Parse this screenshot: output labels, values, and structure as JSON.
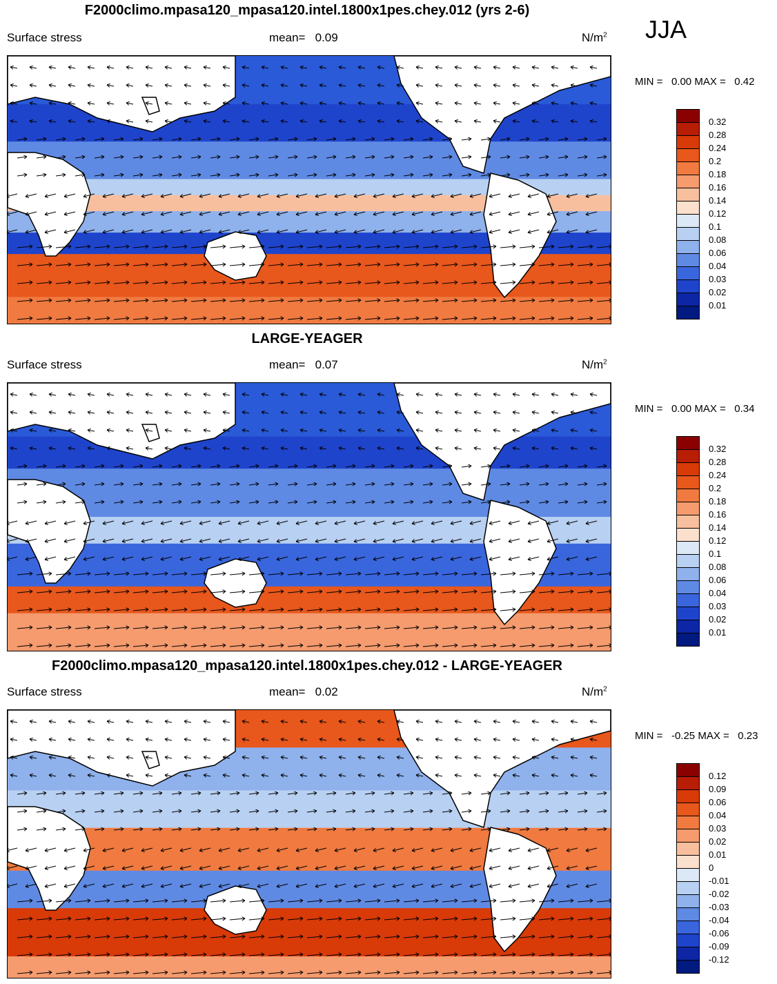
{
  "season": "JJA",
  "panels": [
    {
      "title": "F2000climo.mpasa120_mpasa120.intel.1800x1pes.chey.012 (yrs 2-6)",
      "variable": "Surface stress",
      "mean_label": "mean=",
      "mean_value": "0.09",
      "units_base": "N/m",
      "units_exp": "2",
      "min_label": "MIN =",
      "min_value": "0.00",
      "max_label": "MAX =",
      "max_value": "0.42",
      "colorbar": [
        "0.32",
        "0.28",
        "0.24",
        "0.2",
        "0.18",
        "0.16",
        "0.14",
        "0.12",
        "0.1",
        "0.08",
        "0.06",
        "0.04",
        "0.03",
        "0.02",
        "0.01"
      ]
    },
    {
      "title": "LARGE-YEAGER",
      "variable": "Surface stress",
      "mean_label": "mean=",
      "mean_value": "0.07",
      "units_base": "N/m",
      "units_exp": "2",
      "min_label": "MIN =",
      "min_value": "0.00",
      "max_label": "MAX =",
      "max_value": "0.34",
      "colorbar": [
        "0.32",
        "0.28",
        "0.24",
        "0.2",
        "0.18",
        "0.16",
        "0.14",
        "0.12",
        "0.1",
        "0.08",
        "0.06",
        "0.04",
        "0.03",
        "0.02",
        "0.01"
      ]
    },
    {
      "title": "F2000climo.mpasa120_mpasa120.intel.1800x1pes.chey.012 - LARGE-YEAGER",
      "variable": "Surface stress",
      "mean_label": "mean=",
      "mean_value": "0.02",
      "units_base": "N/m",
      "units_exp": "2",
      "min_label": "MIN =",
      "min_value": "-0.25",
      "max_label": "MAX =",
      "max_value": "0.23",
      "colorbar": [
        "0.12",
        "0.09",
        "0.06",
        "0.04",
        "0.03",
        "0.02",
        "0.01",
        "0",
        "-0.01",
        "-0.02",
        "-0.03",
        "-0.04",
        "-0.06",
        "-0.09",
        "-0.12"
      ]
    }
  ],
  "colors": {
    "palette": [
      "#8b0000",
      "#b81d05",
      "#d83a08",
      "#e8571b",
      "#f07a40",
      "#f59b6e",
      "#f8bf9e",
      "#fbe0cd",
      "#dde8f6",
      "#b8d0f2",
      "#8fb1ec",
      "#5f8ae4",
      "#3a66dd",
      "#1f44cc",
      "#0d26a6",
      "#001a80"
    ]
  },
  "chart_data": [
    {
      "type": "heatmap",
      "title": "F2000climo.mpasa120_mpasa120.intel.1800x1pes.chey.012 (yrs 2-6)",
      "field": "Surface stress (N/m2) with wind stress vectors",
      "season": "JJA",
      "mean": 0.09,
      "min": 0.0,
      "max": 0.42,
      "levels": [
        0.01,
        0.02,
        0.03,
        0.04,
        0.06,
        0.08,
        0.1,
        0.12,
        0.14,
        0.16,
        0.18,
        0.2,
        0.24,
        0.28,
        0.32
      ]
    },
    {
      "type": "heatmap",
      "title": "LARGE-YEAGER",
      "field": "Surface stress (N/m2) with wind stress vectors",
      "season": "JJA",
      "mean": 0.07,
      "min": 0.0,
      "max": 0.34,
      "levels": [
        0.01,
        0.02,
        0.03,
        0.04,
        0.06,
        0.08,
        0.1,
        0.12,
        0.14,
        0.16,
        0.18,
        0.2,
        0.24,
        0.28,
        0.32
      ]
    },
    {
      "type": "heatmap",
      "title": "F2000climo.mpasa120_mpasa120.intel.1800x1pes.chey.012 - LARGE-YEAGER",
      "field": "Surface stress difference (N/m2)",
      "season": "JJA",
      "mean": 0.02,
      "min": -0.25,
      "max": 0.23,
      "levels": [
        -0.12,
        -0.09,
        -0.06,
        -0.04,
        -0.03,
        -0.02,
        -0.01,
        0,
        0.01,
        0.02,
        0.03,
        0.04,
        0.06,
        0.09,
        0.12
      ]
    }
  ]
}
